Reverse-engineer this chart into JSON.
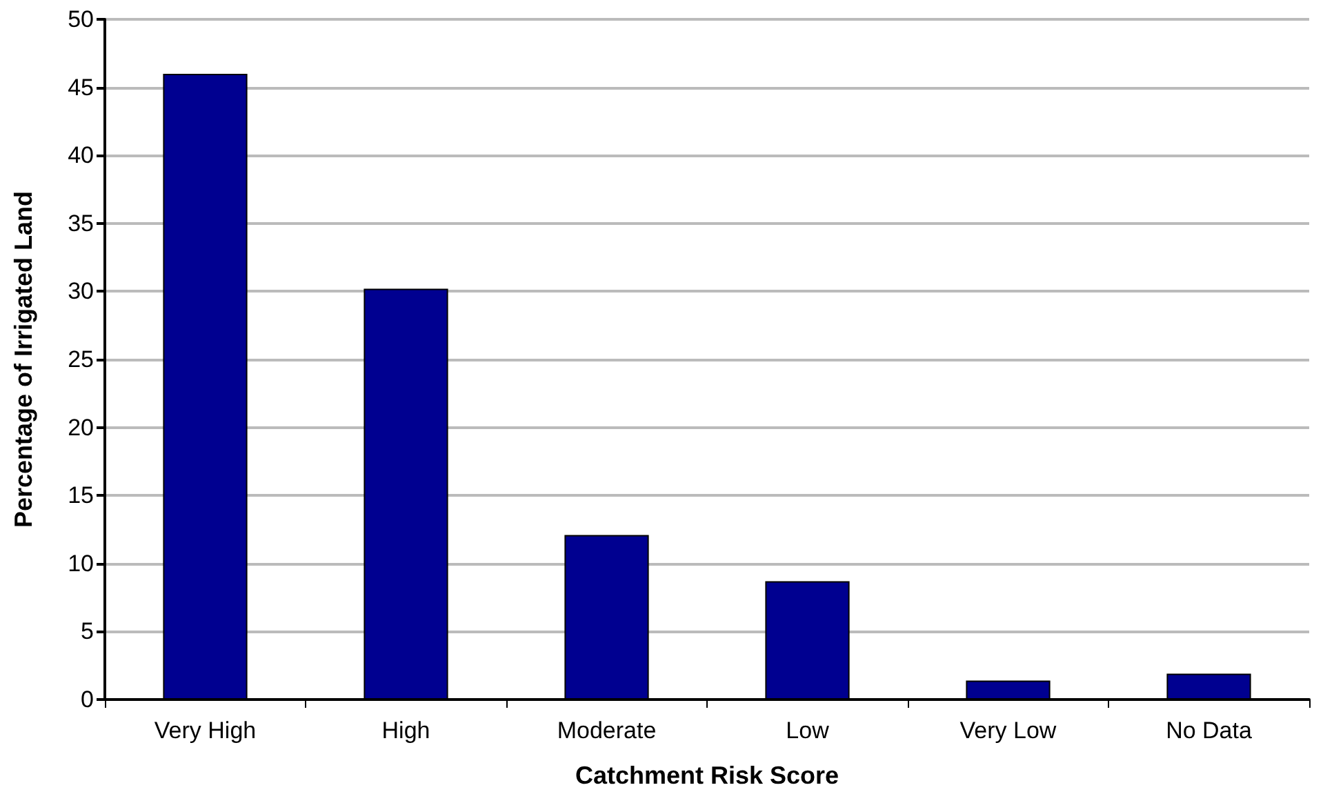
{
  "chart_data": {
    "type": "bar",
    "xlabel": "Catchment Risk Score",
    "ylabel": "Percentage of Irrigated Land",
    "categories": [
      "Very High",
      "High",
      "Moderate",
      "Low",
      "Very Low",
      "No Data"
    ],
    "values": [
      46,
      30.2,
      12.1,
      8.7,
      1.4,
      1.9
    ],
    "color": "#000090",
    "ylim": [
      0,
      50
    ],
    "yticks": [
      0,
      5,
      10,
      15,
      20,
      25,
      30,
      35,
      40,
      45,
      50
    ],
    "grid": "y"
  }
}
